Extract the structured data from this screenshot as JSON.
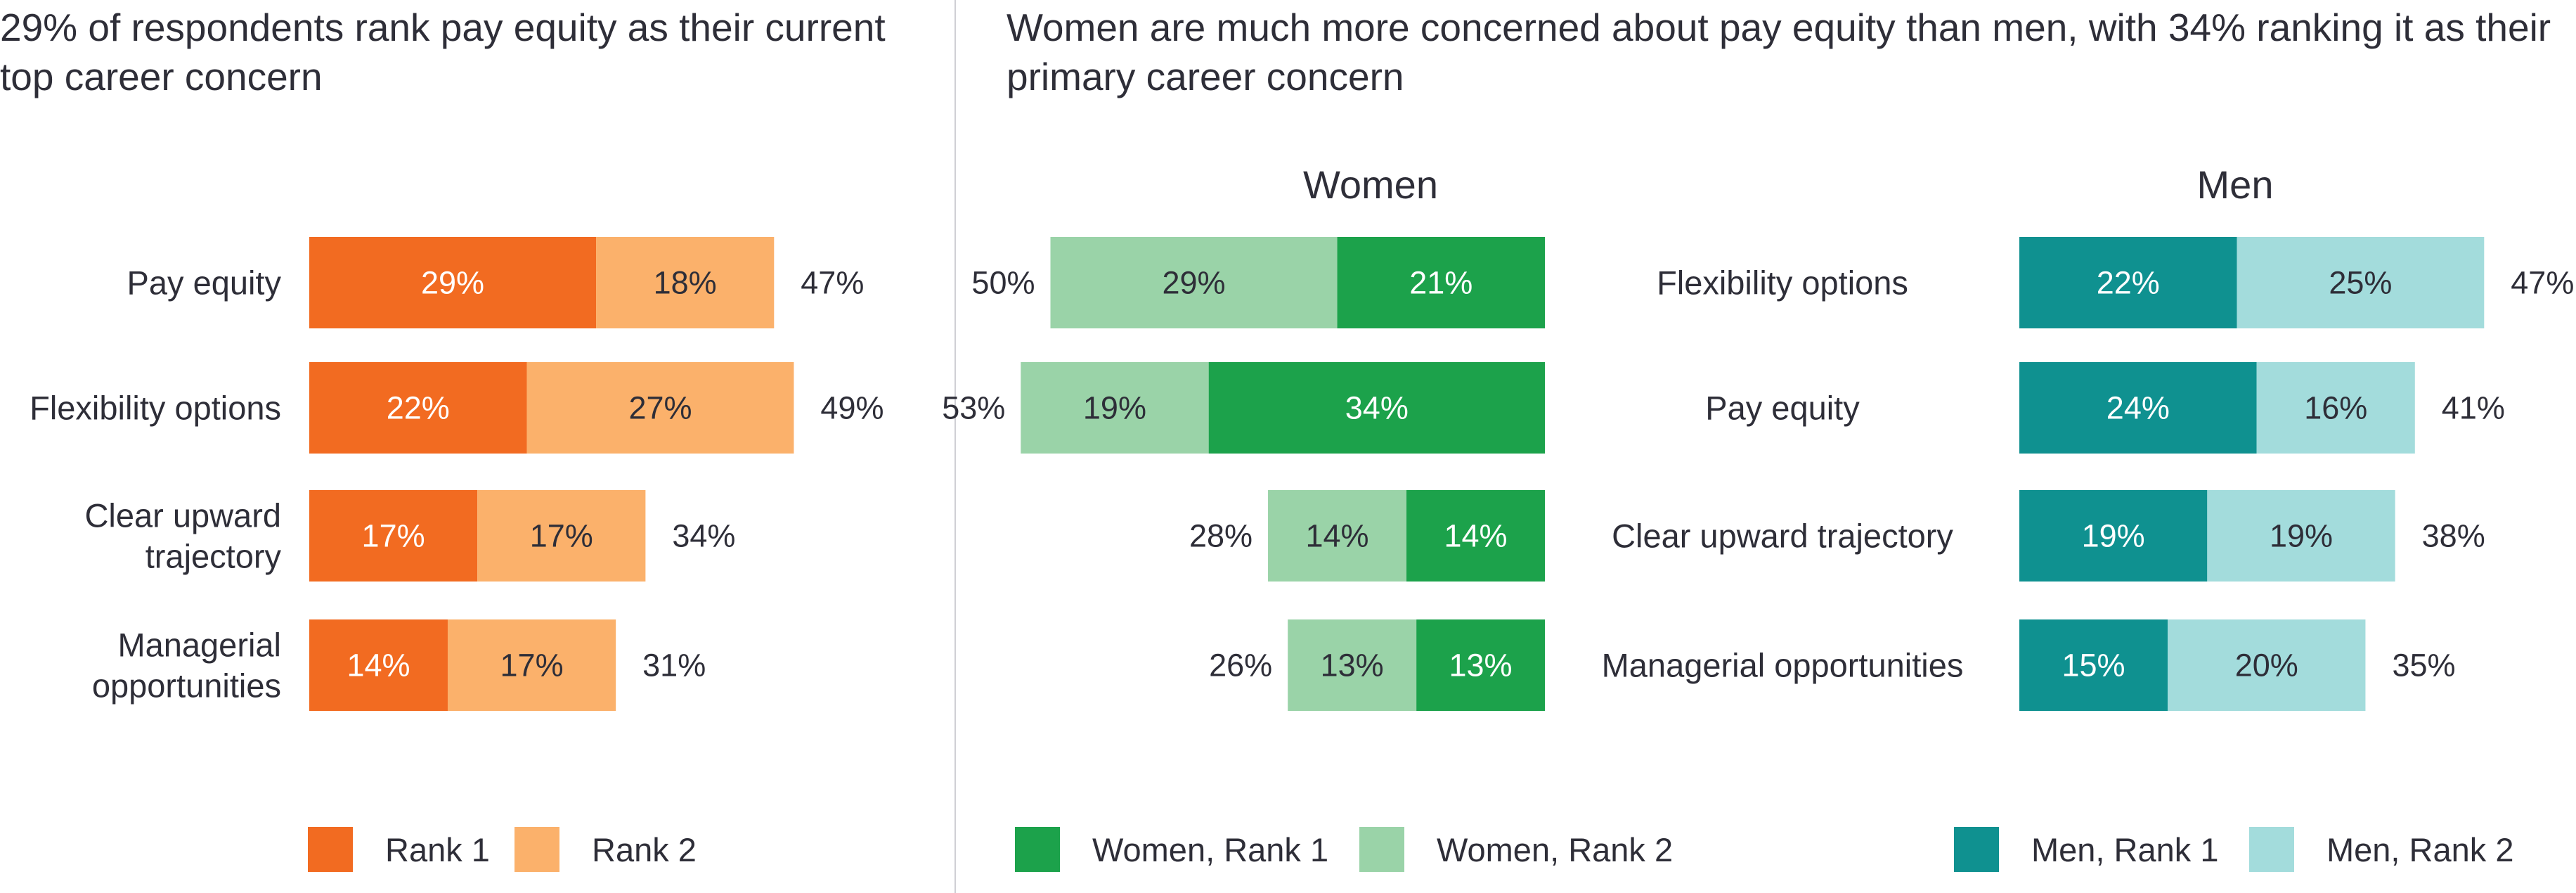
{
  "left": {
    "title": "29% of respondents rank pay equity as their current top career concern"
  },
  "right": {
    "title": "Women are much more concerned about pay equity than men, with 34% ranking it as their primary career concern",
    "women_heading": "Women",
    "men_heading": "Men"
  },
  "legends": {
    "left": [
      {
        "label": "Rank 1",
        "color": "#f26b21"
      },
      {
        "label": "Rank 2",
        "color": "#fbb16b"
      }
    ],
    "women": [
      {
        "label": "Women, Rank 1",
        "color": "#1ca24b"
      },
      {
        "label": "Women, Rank 2",
        "color": "#9ad3a8"
      }
    ],
    "men": [
      {
        "label": "Men, Rank 1",
        "color": "#0f9190"
      },
      {
        "label": "Men, Rank 2",
        "color": "#a3dcdc"
      }
    ]
  },
  "chart_data": [
    {
      "id": "overall",
      "type": "bar",
      "orientation": "horizontal",
      "stacked": true,
      "categories": [
        "Pay equity",
        "Flexibility options",
        "Clear upward trajectory",
        "Managerial opportunities"
      ],
      "series": [
        {
          "name": "Rank 1",
          "color": "#f26b21",
          "values": [
            29,
            22,
            17,
            14
          ]
        },
        {
          "name": "Rank 2",
          "color": "#fbb16b",
          "values": [
            18,
            27,
            17,
            17
          ]
        }
      ],
      "totals": [
        47,
        49,
        34,
        31
      ],
      "value_suffix": "%",
      "legend": "bottom"
    },
    {
      "id": "women",
      "type": "bar",
      "orientation": "horizontal",
      "stacked": true,
      "direction": "right-to-left",
      "title": "Women",
      "categories": [
        "Flexibility options",
        "Pay equity",
        "Clear upward trajectory",
        "Managerial opportunities"
      ],
      "series": [
        {
          "name": "Women, Rank 1",
          "color": "#1ca24b",
          "values": [
            21,
            34,
            14,
            13
          ]
        },
        {
          "name": "Women, Rank 2",
          "color": "#9ad3a8",
          "values": [
            29,
            19,
            14,
            13
          ]
        }
      ],
      "totals": [
        50,
        53,
        28,
        26
      ],
      "value_suffix": "%",
      "legend": "bottom"
    },
    {
      "id": "men",
      "type": "bar",
      "orientation": "horizontal",
      "stacked": true,
      "title": "Men",
      "categories": [
        "Flexibility options",
        "Pay equity",
        "Clear upward trajectory",
        "Managerial opportunities"
      ],
      "series": [
        {
          "name": "Men, Rank 1",
          "color": "#0f9190",
          "values": [
            22,
            24,
            19,
            15
          ]
        },
        {
          "name": "Men, Rank 2",
          "color": "#a3dcdc",
          "values": [
            25,
            16,
            19,
            20
          ]
        }
      ],
      "totals": [
        47,
        41,
        38,
        35
      ],
      "value_suffix": "%",
      "legend": "bottom"
    }
  ]
}
